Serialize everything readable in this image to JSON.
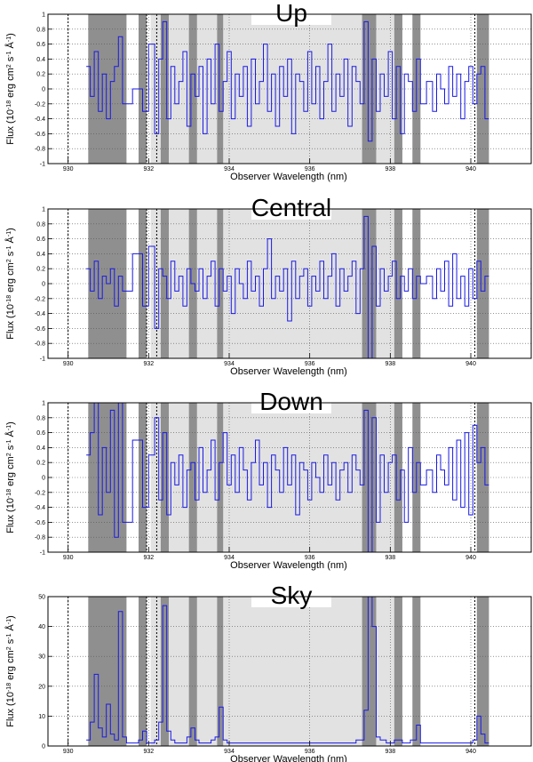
{
  "chart_data": [
    {
      "type": "line",
      "title": "Up",
      "xlabel": "Observer Wavelength (nm)",
      "ylabel_parts": [
        "Flux (10",
        "-18",
        " erg cm",
        "2",
        " s",
        "-1",
        " Å",
        "-1",
        ")"
      ],
      "xlim": [
        929.5,
        941.5
      ],
      "ylim": [
        -1,
        1
      ],
      "xticks": [
        930,
        932,
        934,
        936,
        938,
        940
      ],
      "yticks": [
        -1,
        -0.8,
        -0.6,
        -0.4,
        -0.2,
        0,
        0.2,
        0.4,
        0.6,
        0.8,
        1
      ],
      "ytick_labels": [
        "-1",
        "-0.8",
        "-0.6",
        "-0.4",
        "-0.2",
        "0",
        "0.2",
        "0.4",
        "0.6",
        "0.8",
        "1"
      ],
      "light_band": [
        932.05,
        938.3
      ],
      "dark_bands": [
        [
          930.5,
          931.45
        ],
        [
          931.75,
          931.95
        ],
        [
          932.3,
          932.5
        ],
        [
          933.0,
          933.2
        ],
        [
          933.7,
          933.85
        ],
        [
          937.3,
          937.65
        ],
        [
          938.1,
          938.3
        ],
        [
          938.55,
          938.75
        ],
        [
          940.15,
          940.45
        ]
      ],
      "vlines": [
        930.0,
        931.95,
        932.2,
        940.1
      ],
      "grid": true,
      "series": [
        {
          "color": "#1a1ae6",
          "x": [
            930.5,
            930.6,
            930.7,
            930.8,
            930.9,
            931.0,
            931.1,
            931.2,
            931.3,
            931.4,
            931.8,
            931.9,
            932.1,
            932.2,
            932.3,
            932.4,
            932.5,
            932.6,
            932.7,
            932.8,
            932.9,
            933.0,
            933.1,
            933.2,
            933.3,
            933.4,
            933.5,
            933.6,
            933.7,
            933.8,
            933.9,
            934.0,
            934.1,
            934.2,
            934.3,
            934.4,
            934.5,
            934.6,
            934.7,
            934.8,
            934.9,
            935.0,
            935.1,
            935.2,
            935.3,
            935.4,
            935.5,
            935.6,
            935.7,
            935.8,
            935.9,
            936.0,
            936.1,
            936.2,
            936.3,
            936.4,
            936.5,
            936.6,
            936.7,
            936.8,
            936.9,
            937.0,
            937.1,
            937.2,
            937.3,
            937.4,
            937.5,
            937.6,
            937.7,
            937.8,
            937.9,
            938.0,
            938.1,
            938.2,
            938.3,
            938.4,
            938.5,
            938.6,
            938.7,
            938.8,
            939.0,
            939.1,
            939.2,
            939.3,
            939.4,
            939.5,
            939.6,
            939.7,
            939.8,
            939.9,
            940.0,
            940.1,
            940.2,
            940.3,
            940.4
          ],
          "y": [
            0.3,
            -0.1,
            0.5,
            -0.3,
            0.2,
            -0.4,
            0.1,
            0.3,
            0.7,
            -0.2,
            0.0,
            -0.3,
            0.6,
            -0.6,
            0.4,
            0.9,
            -0.4,
            0.3,
            -0.2,
            0.1,
            0.5,
            -0.5,
            0.2,
            -0.1,
            0.3,
            -0.6,
            0.4,
            -0.2,
            0.6,
            -0.3,
            0.1,
            0.5,
            -0.4,
            0.2,
            -0.1,
            0.3,
            -0.5,
            0.4,
            -0.2,
            0.1,
            0.6,
            -0.3,
            0.2,
            -0.5,
            0.3,
            -0.1,
            0.4,
            -0.6,
            0.2,
            0.1,
            -0.3,
            0.5,
            -0.2,
            0.3,
            -0.4,
            0.1,
            0.6,
            -0.3,
            0.2,
            -0.1,
            0.4,
            -0.5,
            0.3,
            0.1,
            -0.2,
            0.9,
            -0.7,
            0.4,
            -0.3,
            0.2,
            -0.1,
            0.5,
            -0.4,
            0.3,
            -0.6,
            0.2,
            0.1,
            -0.3,
            0.4,
            -0.2,
            0.1,
            -0.3,
            0.2,
            0.0,
            -0.2,
            0.3,
            -0.1,
            0.2,
            -0.4,
            0.1,
            0.3,
            -0.2,
            0.2,
            0.3,
            -0.4
          ]
        }
      ]
    },
    {
      "type": "line",
      "title": "Central",
      "xlabel": "Observer Wavelength (nm)",
      "ylabel_parts": [
        "Flux (10",
        "-18",
        " erg cm",
        "2",
        " s",
        "-1",
        " Å",
        "-1",
        ")"
      ],
      "xlim": [
        929.5,
        941.5
      ],
      "ylim": [
        -1,
        1
      ],
      "xticks": [
        930,
        932,
        934,
        936,
        938,
        940
      ],
      "yticks": [
        -1,
        -0.8,
        -0.6,
        -0.4,
        -0.2,
        0,
        0.2,
        0.4,
        0.6,
        0.8,
        1
      ],
      "ytick_labels": [
        "-1",
        "-0.8",
        "-0.6",
        "-0.4",
        "-0.2",
        "0",
        "0.2",
        "0.4",
        "0.6",
        "0.8",
        "1"
      ],
      "light_band": [
        932.05,
        938.3
      ],
      "dark_bands": [
        [
          930.5,
          931.45
        ],
        [
          931.75,
          931.95
        ],
        [
          932.3,
          932.5
        ],
        [
          933.0,
          933.2
        ],
        [
          933.7,
          933.85
        ],
        [
          937.3,
          937.65
        ],
        [
          938.1,
          938.3
        ],
        [
          938.55,
          938.75
        ],
        [
          940.15,
          940.45
        ]
      ],
      "vlines": [
        930.0,
        931.95,
        932.2,
        940.1
      ],
      "grid": true,
      "series": [
        {
          "color": "#1a1ae6",
          "x": [
            930.5,
            930.6,
            930.7,
            930.8,
            930.9,
            931.0,
            931.1,
            931.2,
            931.3,
            931.4,
            931.8,
            931.9,
            932.1,
            932.2,
            932.3,
            932.4,
            932.5,
            932.6,
            932.7,
            932.8,
            932.9,
            933.0,
            933.1,
            933.2,
            933.3,
            933.4,
            933.5,
            933.6,
            933.7,
            933.8,
            933.9,
            934.0,
            934.1,
            934.2,
            934.3,
            934.4,
            934.5,
            934.6,
            934.7,
            934.8,
            934.9,
            935.0,
            935.1,
            935.2,
            935.3,
            935.4,
            935.5,
            935.6,
            935.7,
            935.8,
            935.9,
            936.0,
            936.1,
            936.2,
            936.3,
            936.4,
            936.5,
            936.6,
            936.7,
            936.8,
            936.9,
            937.0,
            937.1,
            937.2,
            937.3,
            937.4,
            937.5,
            937.6,
            937.7,
            937.8,
            937.9,
            938.0,
            938.1,
            938.2,
            938.3,
            938.4,
            938.5,
            938.6,
            938.7,
            938.8,
            939.0,
            939.1,
            939.2,
            939.3,
            939.4,
            939.5,
            939.6,
            939.7,
            939.8,
            939.9,
            940.0,
            940.1,
            940.2,
            940.3,
            940.4
          ],
          "y": [
            0.2,
            -0.1,
            0.3,
            -0.2,
            0.1,
            0.0,
            0.2,
            -0.3,
            0.1,
            -0.1,
            0.4,
            -0.3,
            0.5,
            -0.6,
            0.2,
            0.1,
            -0.2,
            0.3,
            -0.1,
            0.1,
            -0.3,
            0.2,
            0.0,
            -0.1,
            0.2,
            -0.2,
            0.1,
            0.3,
            -0.3,
            0.2,
            -0.1,
            0.1,
            -0.4,
            0.2,
            0.0,
            -0.2,
            0.3,
            -0.1,
            0.1,
            -0.3,
            0.2,
            0.6,
            -0.2,
            0.1,
            -0.1,
            0.2,
            -0.5,
            0.3,
            -0.2,
            0.1,
            0.2,
            -0.3,
            0.1,
            -0.1,
            0.3,
            -0.2,
            0.1,
            0.4,
            -0.3,
            0.2,
            -0.1,
            0.1,
            0.3,
            -0.4,
            0.2,
            0.9,
            -1.0,
            0.5,
            -0.3,
            0.2,
            -0.1,
            0.1,
            0.3,
            -0.2,
            0.1,
            -0.1,
            0.2,
            -0.2,
            0.1,
            0.0,
            0.1,
            -0.2,
            0.2,
            -0.1,
            0.3,
            -0.3,
            0.4,
            -0.2,
            0.1,
            -0.3,
            0.2,
            -0.2,
            0.3,
            -0.1,
            0.1
          ]
        }
      ]
    },
    {
      "type": "line",
      "title": "Down",
      "xlabel": "Observer Wavelength (nm)",
      "ylabel_parts": [
        "Flux (10",
        "-18",
        " erg cm",
        "2",
        " s",
        "-1",
        " Å",
        "-1",
        ")"
      ],
      "xlim": [
        929.5,
        941.5
      ],
      "ylim": [
        -1,
        1
      ],
      "xticks": [
        930,
        932,
        934,
        936,
        938,
        940
      ],
      "yticks": [
        -1,
        -0.8,
        -0.6,
        -0.4,
        -0.2,
        0,
        0.2,
        0.4,
        0.6,
        0.8,
        1
      ],
      "ytick_labels": [
        "-1",
        "-0.8",
        "-0.6",
        "-0.4",
        "-0.2",
        "0",
        "0.2",
        "0.4",
        "0.6",
        "0.8",
        "1"
      ],
      "light_band": [
        932.05,
        938.3
      ],
      "dark_bands": [
        [
          930.5,
          931.45
        ],
        [
          931.75,
          931.95
        ],
        [
          932.3,
          932.5
        ],
        [
          933.0,
          933.2
        ],
        [
          933.7,
          933.85
        ],
        [
          937.3,
          937.65
        ],
        [
          938.1,
          938.3
        ],
        [
          938.55,
          938.75
        ],
        [
          940.15,
          940.45
        ]
      ],
      "vlines": [
        930.0,
        931.95,
        932.2,
        940.1
      ],
      "grid": true,
      "series": [
        {
          "color": "#1a1ae6",
          "x": [
            930.5,
            930.6,
            930.7,
            930.8,
            930.9,
            931.0,
            931.1,
            931.2,
            931.3,
            931.4,
            931.8,
            931.9,
            932.1,
            932.2,
            932.3,
            932.4,
            932.5,
            932.6,
            932.7,
            932.8,
            932.9,
            933.0,
            933.1,
            933.2,
            933.3,
            933.4,
            933.5,
            933.6,
            933.7,
            933.8,
            933.9,
            934.0,
            934.1,
            934.2,
            934.3,
            934.4,
            934.5,
            934.6,
            934.7,
            934.8,
            934.9,
            935.0,
            935.1,
            935.2,
            935.3,
            935.4,
            935.5,
            935.6,
            935.7,
            935.8,
            935.9,
            936.0,
            936.1,
            936.2,
            936.3,
            936.4,
            936.5,
            936.6,
            936.7,
            936.8,
            936.9,
            937.0,
            937.1,
            937.2,
            937.3,
            937.4,
            937.5,
            937.6,
            937.7,
            937.8,
            937.9,
            938.0,
            938.1,
            938.2,
            938.3,
            938.4,
            938.5,
            938.6,
            938.7,
            938.8,
            939.0,
            939.1,
            939.2,
            939.3,
            939.4,
            939.5,
            939.6,
            939.7,
            939.8,
            939.9,
            940.0,
            940.1,
            940.2,
            940.3,
            940.4
          ],
          "y": [
            0.3,
            0.6,
            1.0,
            -0.5,
            0.4,
            -0.2,
            0.9,
            -0.8,
            1.0,
            -0.6,
            0.5,
            -0.4,
            0.3,
            0.8,
            -0.3,
            0.6,
            -0.5,
            0.2,
            -0.1,
            0.3,
            -0.4,
            0.1,
            0.2,
            -0.3,
            0.4,
            -0.2,
            0.1,
            0.5,
            -0.3,
            0.2,
            0.6,
            -0.1,
            0.3,
            -0.2,
            0.4,
            0.1,
            -0.3,
            0.2,
            0.5,
            -0.1,
            0.2,
            -0.4,
            0.3,
            0.1,
            -0.2,
            0.4,
            -0.1,
            0.3,
            -0.5,
            0.2,
            0.1,
            -0.3,
            0.2,
            0.0,
            -0.2,
            0.3,
            -0.1,
            0.2,
            -0.3,
            0.1,
            0.2,
            -0.2,
            0.3,
            0.1,
            -0.1,
            0.9,
            -1.0,
            0.8,
            -0.6,
            0.3,
            -0.2,
            0.2,
            0.3,
            -0.3,
            0.1,
            -0.6,
            0.4,
            -0.2,
            0.2,
            -0.1,
            0.1,
            -0.2,
            0.3,
            0.1,
            -0.1,
            0.4,
            -0.3,
            0.5,
            -0.4,
            0.6,
            -0.5,
            0.7,
            0.2,
            0.4,
            -0.1
          ]
        }
      ]
    },
    {
      "type": "line",
      "title": "Sky",
      "xlabel": "Observer Wavelength (nm)",
      "ylabel_parts": [
        "Flux (10",
        "-18",
        " erg cm",
        "2",
        " s",
        "-1",
        " Å",
        "-1",
        ")"
      ],
      "xlim": [
        929.5,
        941.5
      ],
      "ylim": [
        0,
        50
      ],
      "xticks": [
        930,
        932,
        934,
        936,
        938,
        940
      ],
      "yticks": [
        0,
        10,
        20,
        30,
        40,
        50
      ],
      "ytick_labels": [
        "0",
        "10",
        "20",
        "30",
        "40",
        "50"
      ],
      "light_band": [
        932.05,
        938.3
      ],
      "dark_bands": [
        [
          930.5,
          931.45
        ],
        [
          931.75,
          931.95
        ],
        [
          932.3,
          932.5
        ],
        [
          933.0,
          933.2
        ],
        [
          933.7,
          933.85
        ],
        [
          937.3,
          937.65
        ],
        [
          938.1,
          938.3
        ],
        [
          938.55,
          938.75
        ],
        [
          940.15,
          940.45
        ]
      ],
      "vlines": [
        930.0,
        931.95,
        932.2,
        940.1
      ],
      "grid": true,
      "series": [
        {
          "color": "#1a1ae6",
          "x": [
            930.5,
            930.6,
            930.7,
            930.8,
            930.9,
            931.0,
            931.1,
            931.2,
            931.3,
            931.4,
            931.5,
            931.7,
            931.8,
            931.9,
            932.0,
            932.1,
            932.2,
            932.3,
            932.4,
            932.5,
            932.6,
            932.7,
            932.8,
            932.9,
            933.0,
            933.1,
            933.2,
            933.3,
            933.4,
            933.5,
            933.6,
            933.7,
            933.8,
            933.9,
            934.0,
            934.5,
            935.0,
            935.5,
            936.0,
            936.5,
            937.0,
            937.3,
            937.4,
            937.5,
            937.6,
            937.7,
            937.8,
            938.0,
            938.2,
            938.4,
            938.6,
            938.7,
            938.8,
            939.0,
            939.5,
            940.0,
            940.1,
            940.2,
            940.3,
            940.4
          ],
          "y": [
            2,
            8,
            24,
            6,
            3,
            14,
            4,
            2,
            45,
            3,
            1,
            1,
            2,
            5,
            1,
            1,
            2,
            8,
            47,
            5,
            2,
            1,
            1,
            1,
            3,
            6,
            2,
            1,
            1,
            1,
            2,
            3,
            13,
            2,
            1,
            1,
            1,
            1,
            1,
            1,
            1,
            2,
            12,
            50,
            40,
            3,
            2,
            1,
            2,
            1,
            2,
            7,
            1,
            1,
            1,
            1,
            2,
            10,
            4,
            1
          ]
        }
      ]
    }
  ]
}
